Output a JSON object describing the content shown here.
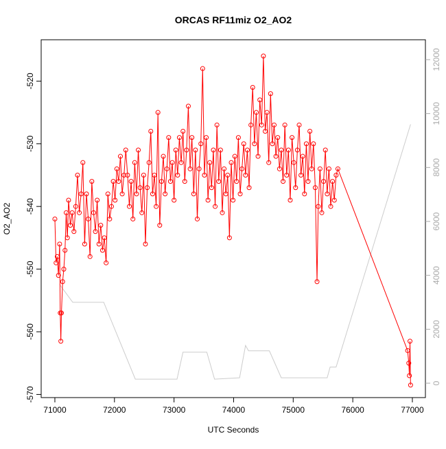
{
  "chart_data": {
    "type": "line",
    "title": "ORCAS RF11miz O2_AO2",
    "x_label": "UTC Seconds",
    "y_label": "O2_AO2",
    "xlim": [
      70770,
      77219
    ],
    "xticks": [
      71000,
      72000,
      73000,
      74000,
      75000,
      76000,
      77000
    ],
    "ylim": [
      -570.5,
      -513.4
    ],
    "yticks": [
      -570,
      -560,
      -550,
      -540,
      -530,
      -520
    ],
    "y2lim": [
      -534,
      12737
    ],
    "y2ticks": [
      0,
      2000,
      4000,
      6000,
      8000,
      10000,
      12000
    ],
    "series": [
      {
        "color": "#ff0000",
        "markers": true,
        "x": [
          71000,
          71020,
          71040,
          71060,
          71080,
          71090,
          71100,
          71110,
          71130,
          71150,
          71170,
          71190,
          71210,
          71230,
          71260,
          71290,
          71320,
          71350,
          71380,
          71410,
          71440,
          71470,
          71500,
          71530,
          71560,
          71590,
          71620,
          71650,
          71680,
          71710,
          71740,
          71770,
          71800,
          71830,
          71860,
          71890,
          71920,
          71950,
          71980,
          72010,
          72040,
          72070,
          72100,
          72130,
          72160,
          72190,
          72220,
          72250,
          72280,
          72310,
          72340,
          72370,
          72400,
          72430,
          72460,
          72490,
          72520,
          72550,
          72580,
          72610,
          72640,
          72670,
          72700,
          72730,
          72760,
          72790,
          72820,
          72850,
          72880,
          72910,
          72940,
          72970,
          73000,
          73030,
          73060,
          73090,
          73120,
          73150,
          73180,
          73210,
          73240,
          73270,
          73300,
          73330,
          73360,
          73390,
          73420,
          73450,
          73480,
          73510,
          73540,
          73570,
          73600,
          73630,
          73660,
          73690,
          73720,
          73750,
          73780,
          73810,
          73840,
          73870,
          73900,
          73930,
          73960,
          73990,
          74020,
          74050,
          74080,
          74110,
          74140,
          74170,
          74200,
          74230,
          74260,
          74290,
          74320,
          74350,
          74380,
          74410,
          74440,
          74470,
          74500,
          74530,
          74560,
          74590,
          74620,
          74650,
          74680,
          74710,
          74740,
          74770,
          74800,
          74830,
          74860,
          74890,
          74920,
          74950,
          74980,
          75010,
          75040,
          75070,
          75100,
          75130,
          75160,
          75190,
          75220,
          75250,
          75280,
          75310,
          75340,
          75370,
          75400,
          75420,
          75450,
          75480,
          75510,
          75540,
          75570,
          75600,
          75630,
          75660,
          75690,
          75720,
          75750,
          76920,
          76940,
          76950,
          76960,
          76970
        ],
        "values": [
          -542,
          -549,
          -548,
          -551,
          -546,
          -557,
          -561.5,
          -557,
          -552,
          -550,
          -547,
          -541,
          -545,
          -539,
          -543,
          -541,
          -544,
          -540,
          -535,
          -541,
          -538,
          -533,
          -546,
          -538,
          -542,
          -548,
          -536,
          -541,
          -544,
          -539,
          -546,
          -543,
          -547,
          -545,
          -549,
          -538,
          -542,
          -540,
          -536,
          -539,
          -534,
          -536,
          -532,
          -538,
          -535,
          -531,
          -535,
          -540,
          -536,
          -542,
          -533,
          -538,
          -531,
          -537,
          -541,
          -535,
          -546,
          -537,
          -533,
          -528,
          -538,
          -535,
          -540,
          -525,
          -543,
          -536,
          -532,
          -538,
          -534,
          -529,
          -536,
          -533,
          -539,
          -531,
          -535,
          -529,
          -533,
          -528,
          -536,
          -531,
          -524,
          -534,
          -529,
          -538,
          -531,
          -542,
          -534,
          -530,
          -518,
          -535,
          -529,
          -539,
          -533,
          -537,
          -531,
          -540,
          -527,
          -536,
          -531,
          -541,
          -534,
          -538,
          -535,
          -545,
          -533,
          -539,
          -532,
          -536,
          -529,
          -538,
          -534,
          -530,
          -535,
          -531,
          -537,
          -527,
          -521,
          -530,
          -525,
          -532,
          -523,
          -527,
          -516,
          -528,
          -525,
          -533,
          -522,
          -530,
          -527,
          -532,
          -529,
          -534,
          -531,
          -536,
          -527,
          -535,
          -531,
          -539,
          -529,
          -533,
          -537,
          -531,
          -527,
          -535,
          -532,
          -538,
          -530,
          -536,
          -528,
          -534,
          -530,
          -537,
          -552,
          -540,
          -534,
          -541,
          -536,
          -531,
          -538,
          -534,
          -540,
          -536,
          -539,
          -535,
          -534,
          -563,
          -565,
          -567,
          -561.5,
          -568.5
        ]
      },
      {
        "color": "#cccccc",
        "axis": "y2",
        "markers": false,
        "x": [
          71080,
          71300,
          71820,
          72350,
          73050,
          73150,
          73550,
          73680,
          74100,
          74200,
          74250,
          74600,
          74800,
          75570,
          75620,
          75720,
          76970
        ],
        "values": [
          3660,
          3000,
          3000,
          150,
          150,
          1150,
          1150,
          150,
          200,
          1400,
          1200,
          1200,
          200,
          200,
          600,
          600,
          9600
        ]
      }
    ]
  }
}
